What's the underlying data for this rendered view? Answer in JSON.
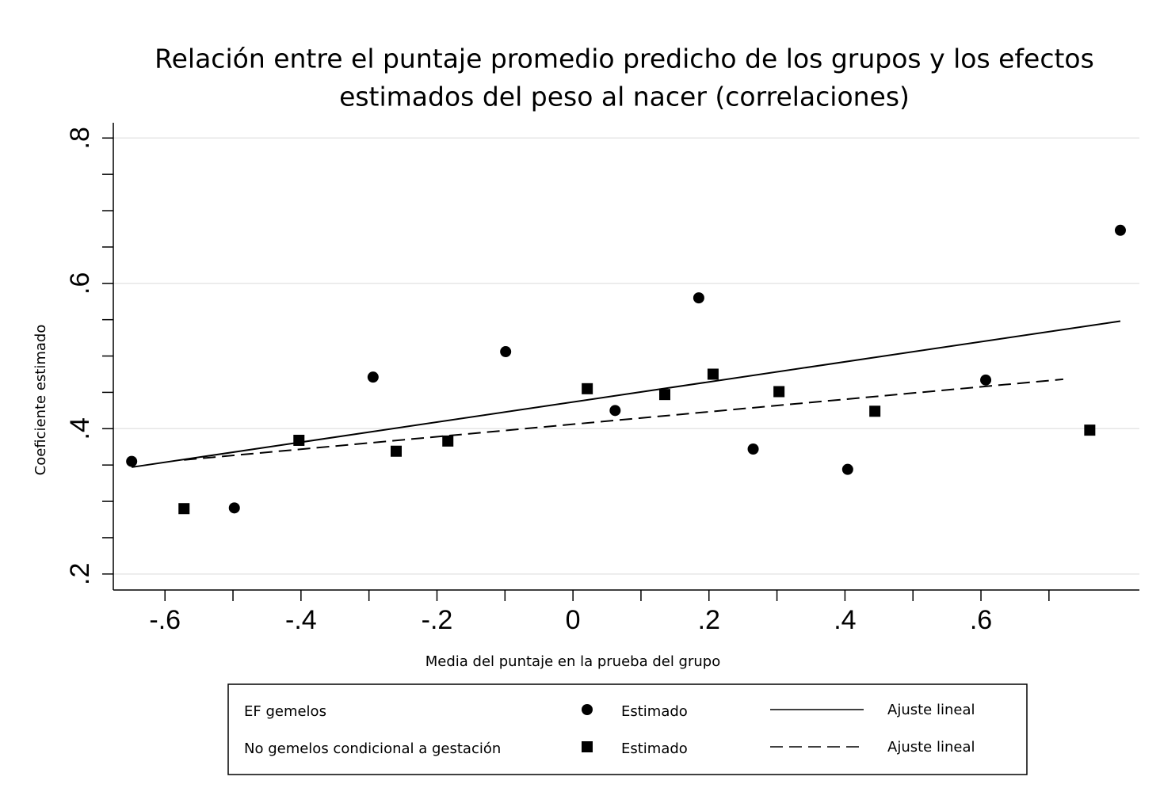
{
  "chart_data": {
    "type": "scatter",
    "title": [
      "Relación entre el puntaje promedio predicho de los grupos y los efectos",
      "estimados del peso al nacer (correlaciones)"
    ],
    "x_label": "Media del puntaje en la prueba del grupo",
    "y_label": "Coeficiente estimado",
    "xlim": [
      -0.676,
      0.833
    ],
    "ylim": [
      0.178,
      0.821
    ],
    "xticks": [
      {
        "value": -0.6,
        "label": "-.6"
      },
      {
        "value": -0.4,
        "label": "-.4"
      },
      {
        "value": -0.2,
        "label": "-.2"
      },
      0,
      {
        "value": 0.2,
        "label": ".2"
      },
      {
        "value": 0.4,
        "label": ".4"
      },
      {
        "value": 0.6,
        "label": ".6"
      }
    ],
    "xminor_ticks": [
      -0.5,
      -0.3,
      -0.1,
      0.1,
      0.3,
      0.5,
      0.7
    ],
    "yticks": [
      {
        "value": 0.2,
        "label": ".2"
      },
      {
        "value": 0.4,
        "label": ".4"
      },
      {
        "value": 0.6,
        "label": ".6"
      },
      {
        "value": 0.8,
        "label": ".8"
      }
    ],
    "yminor_ticks": [
      0.25,
      0.3,
      0.35,
      0.45,
      0.5,
      0.55,
      0.65,
      0.7,
      0.75
    ],
    "grid": true,
    "series": [
      {
        "name": "Estimado",
        "group": "EF gemelos",
        "kind": "points",
        "marker": "circle",
        "color": "#000000",
        "x": [
          -0.649,
          -0.498,
          -0.294,
          -0.099,
          0.062,
          0.185,
          0.265,
          0.404,
          0.607,
          0.805
        ],
        "values": [
          0.355,
          0.291,
          0.471,
          0.506,
          0.425,
          0.58,
          0.372,
          0.344,
          0.467,
          0.673
        ]
      },
      {
        "name": "Estimado",
        "group": "No gemelos condicional a gestación",
        "kind": "points",
        "marker": "square",
        "color": "#000000",
        "x": [
          -0.572,
          -0.403,
          -0.26,
          -0.184,
          0.021,
          0.135,
          0.206,
          0.303,
          0.444,
          0.76
        ],
        "values": [
          0.29,
          0.384,
          0.369,
          0.383,
          0.455,
          0.447,
          0.475,
          0.451,
          0.424,
          0.398
        ]
      },
      {
        "name": "Ajuste lineal",
        "group": "EF gemelos",
        "kind": "fit",
        "dashed": false,
        "color": "#000000",
        "x": [
          -0.649,
          0.805
        ],
        "values": [
          0.347,
          0.548
        ]
      },
      {
        "name": "Ajuste lineal",
        "group": "No gemelos condicional a gestación",
        "kind": "fit",
        "dashed": true,
        "color": "#000000",
        "x": [
          -0.572,
          0.721
        ],
        "values": [
          0.357,
          0.468
        ]
      }
    ]
  }
}
